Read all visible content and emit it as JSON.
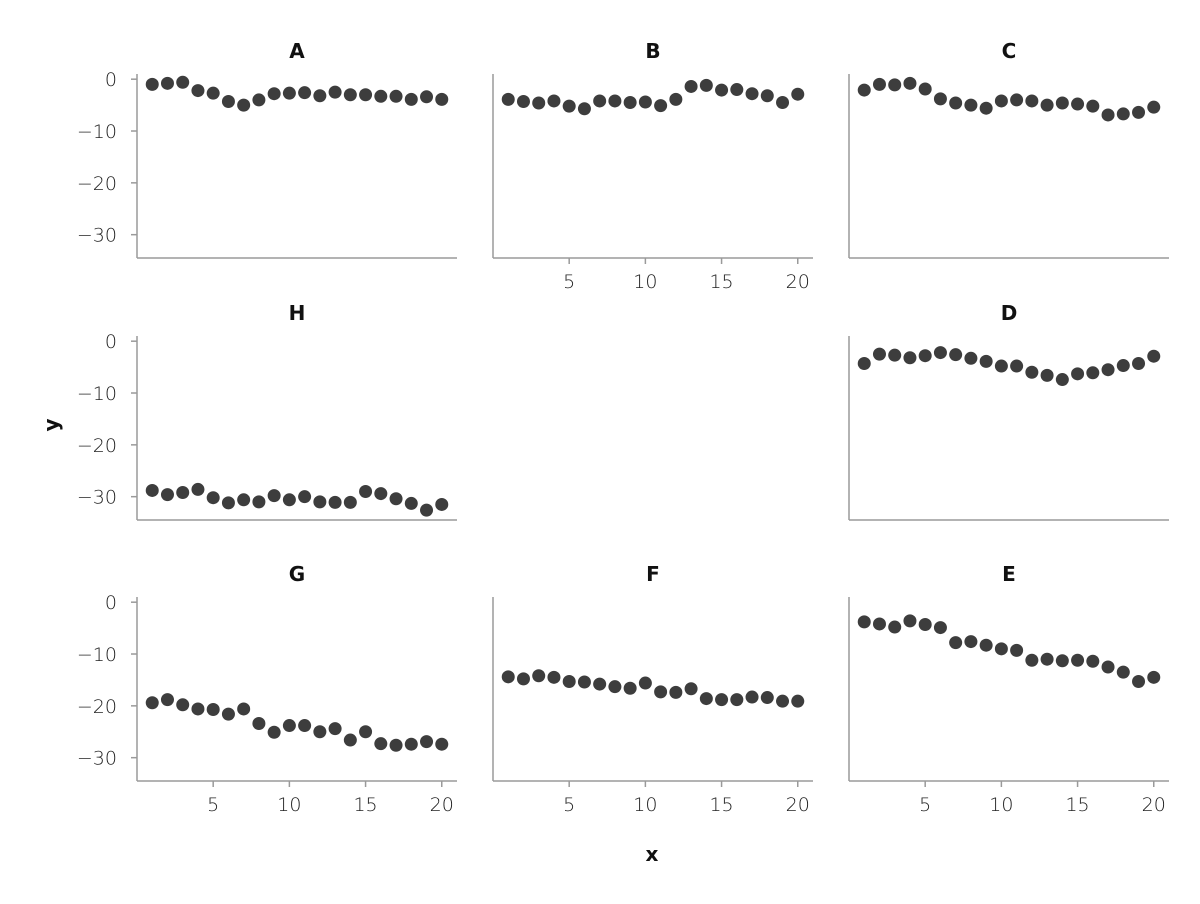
{
  "chart_data": {
    "type": "scatter",
    "layout": "facet-grid-3x3",
    "xlabel": "x",
    "ylabel": "y",
    "xlim": [
      0,
      21
    ],
    "ylim": [
      -34.5,
      1
    ],
    "xticks": [
      5,
      10,
      15,
      20
    ],
    "yticks": [
      0,
      -10,
      -20,
      -30
    ],
    "ytick_labels": [
      "0",
      "−10",
      "−20",
      "−30"
    ],
    "xtick_labels": [
      "5",
      "10",
      "15",
      "20"
    ],
    "point_color": "#3d3d3d",
    "axis_color": "#9a9a9a",
    "grid": false,
    "x": [
      1,
      2,
      3,
      4,
      5,
      6,
      7,
      8,
      9,
      10,
      11,
      12,
      13,
      14,
      15,
      16,
      17,
      18,
      19,
      20
    ],
    "panels": [
      {
        "title": "A",
        "row": 0,
        "col": 0,
        "show_x_ticks": false,
        "show_y_ticks": true,
        "values": [
          -1,
          -0.8,
          -0.6,
          -2.2,
          -2.7,
          -4.3,
          -5,
          -4,
          -2.8,
          -2.7,
          -2.6,
          -3.2,
          -2.5,
          -3,
          -3,
          -3.3,
          -3.3,
          -3.9,
          -3.4,
          -3.9
        ]
      },
      {
        "title": "B",
        "row": 0,
        "col": 1,
        "show_x_ticks": true,
        "show_y_ticks": false,
        "values": [
          -3.9,
          -4.3,
          -4.6,
          -4.2,
          -5.2,
          -5.7,
          -4.2,
          -4.2,
          -4.5,
          -4.4,
          -5.1,
          -3.9,
          -1.4,
          -1.2,
          -2.1,
          -2,
          -2.8,
          -3.2,
          -4.5,
          -2.9
        ]
      },
      {
        "title": "C",
        "row": 0,
        "col": 2,
        "show_x_ticks": false,
        "show_y_ticks": false,
        "values": [
          -2.1,
          -1,
          -1.1,
          -0.8,
          -1.9,
          -3.8,
          -4.6,
          -5,
          -5.6,
          -4.2,
          -4,
          -4.2,
          -5,
          -4.6,
          -4.8,
          -5.2,
          -6.9,
          -6.7,
          -6.4,
          -5.4
        ]
      },
      {
        "title": "H",
        "row": 1,
        "col": 0,
        "show_x_ticks": false,
        "show_y_ticks": true,
        "values": [
          -28.8,
          -29.6,
          -29.2,
          -28.6,
          -30.2,
          -31.2,
          -30.6,
          -31,
          -29.8,
          -30.6,
          -30,
          -31,
          -31.1,
          -31.1,
          -29,
          -29.4,
          -30.4,
          -31.3,
          -32.6,
          -31.5
        ]
      },
      {
        "title": "D",
        "row": 1,
        "col": 2,
        "show_x_ticks": false,
        "show_y_ticks": false,
        "values": [
          -4.3,
          -2.5,
          -2.7,
          -3.2,
          -2.8,
          -2.2,
          -2.6,
          -3.3,
          -3.9,
          -4.8,
          -4.8,
          -6,
          -6.6,
          -7.4,
          -6.3,
          -6.1,
          -5.5,
          -4.7,
          -4.3,
          -2.9
        ]
      },
      {
        "title": "G",
        "row": 2,
        "col": 0,
        "show_x_ticks": true,
        "show_y_ticks": true,
        "values": [
          -19.4,
          -18.8,
          -19.8,
          -20.6,
          -20.7,
          -21.6,
          -20.6,
          -23.4,
          -25.1,
          -23.8,
          -23.8,
          -25,
          -24.4,
          -26.6,
          -25,
          -27.3,
          -27.6,
          -27.4,
          -26.9,
          -27.4
        ]
      },
      {
        "title": "F",
        "row": 2,
        "col": 1,
        "show_x_ticks": true,
        "show_y_ticks": false,
        "values": [
          -14.4,
          -14.8,
          -14.2,
          -14.5,
          -15.3,
          -15.4,
          -15.8,
          -16.3,
          -16.6,
          -15.6,
          -17.3,
          -17.4,
          -16.7,
          -18.6,
          -18.8,
          -18.8,
          -18.3,
          -18.4,
          -19.1,
          -19.1
        ]
      },
      {
        "title": "E",
        "row": 2,
        "col": 2,
        "show_x_ticks": true,
        "show_y_ticks": false,
        "values": [
          -3.8,
          -4.2,
          -4.8,
          -3.6,
          -4.3,
          -4.9,
          -7.8,
          -7.6,
          -8.3,
          -9,
          -9.3,
          -11.2,
          -11,
          -11.3,
          -11.2,
          -11.4,
          -12.5,
          -13.5,
          -15.3,
          -14.5
        ]
      }
    ]
  }
}
